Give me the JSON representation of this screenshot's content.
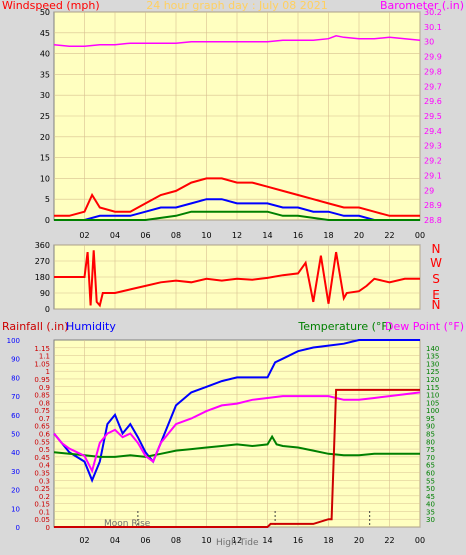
{
  "colors": {
    "bg": "#d9d9d9",
    "plot": "#ffffc0",
    "grid": "#d8c090",
    "red": "#ff0000",
    "magenta": "#ff00ff",
    "blue": "#0000ff",
    "green": "#008000",
    "darkred": "#cc0000",
    "title": "#ffd060",
    "tick": "#000000"
  },
  "chart_data": [
    {
      "type": "line",
      "id": "wind-baro",
      "title": "24 hour graph day : July 08 2021",
      "ylabel_left": "Windspeed (mph)",
      "ylabel_right": "Barometer (.in)",
      "ylim_left": [
        0,
        50
      ],
      "yticks_left": [
        "0",
        "5",
        "10",
        "15",
        "20",
        "25",
        "30",
        "35",
        "40",
        "45",
        "50"
      ],
      "ylim_right": [
        28.8,
        30.2
      ],
      "yticks_right": [
        "28.8",
        "28.9",
        "29",
        "29.1",
        "29.2",
        "29.3",
        "29.4",
        "29.5",
        "29.6",
        "29.7",
        "29.8",
        "29.9",
        "30",
        "30.1",
        "30.2"
      ],
      "xlim": [
        0,
        24
      ],
      "xticks": [
        "02",
        "04",
        "06",
        "08",
        "10",
        "12",
        "14",
        "16",
        "18",
        "20",
        "22",
        "00"
      ],
      "series": [
        {
          "role": "barometer",
          "color": "#ff00ff",
          "x": [
            0,
            1,
            2,
            3,
            4,
            5,
            6,
            7,
            8,
            9,
            10,
            11,
            12,
            13,
            14,
            15,
            16,
            17,
            18,
            18.5,
            19,
            20,
            21,
            22,
            23,
            24
          ],
          "y": [
            29.98,
            29.97,
            29.97,
            29.98,
            29.98,
            29.99,
            29.99,
            29.99,
            29.99,
            30.0,
            30.0,
            30.0,
            30.0,
            30.0,
            30.0,
            30.01,
            30.01,
            30.01,
            30.02,
            30.04,
            30.03,
            30.02,
            30.02,
            30.03,
            30.02,
            30.01
          ]
        },
        {
          "role": "wind-gust",
          "color": "#ff0000",
          "x": [
            0,
            1,
            2,
            2.5,
            3,
            4,
            5,
            6,
            7,
            8,
            9,
            10,
            11,
            12,
            13,
            14,
            15,
            16,
            17,
            18,
            19,
            20,
            21,
            22,
            23,
            24
          ],
          "y": [
            1,
            1,
            2,
            6,
            3,
            2,
            2,
            4,
            6,
            7,
            9,
            10,
            10,
            9,
            9,
            8,
            7,
            6,
            5,
            4,
            3,
            3,
            2,
            1,
            1,
            1
          ]
        },
        {
          "role": "wind-avg",
          "color": "#0000ff",
          "x": [
            0,
            2,
            3,
            4,
            5,
            6,
            7,
            8,
            9,
            10,
            11,
            12,
            13,
            14,
            15,
            16,
            17,
            18,
            19,
            20,
            21,
            22,
            24
          ],
          "y": [
            0,
            0,
            1,
            1,
            1,
            2,
            3,
            3,
            4,
            5,
            5,
            4,
            4,
            4,
            3,
            3,
            2,
            2,
            1,
            1,
            0,
            0,
            0
          ]
        },
        {
          "role": "wind-low",
          "color": "#008000",
          "x": [
            0,
            4,
            6,
            8,
            9,
            10,
            11,
            12,
            13,
            14,
            15,
            16,
            18,
            20,
            24
          ],
          "y": [
            0,
            0,
            0,
            1,
            2,
            2,
            2,
            2,
            2,
            2,
            1,
            1,
            0,
            0,
            0
          ]
        }
      ]
    },
    {
      "type": "line",
      "id": "wind-direction",
      "ylim": [
        0,
        360
      ],
      "yticks": [
        "0",
        "90",
        "180",
        "270",
        "360"
      ],
      "right_labels": [
        "N",
        "W",
        "S",
        "E",
        "N"
      ],
      "xlim": [
        0,
        24
      ],
      "series": [
        {
          "role": "direction",
          "color": "#ff0000",
          "x": [
            0,
            1,
            2,
            2.2,
            2.4,
            2.6,
            2.8,
            3,
            3.2,
            4,
            5,
            6,
            7,
            8,
            9,
            10,
            11,
            12,
            13,
            14,
            15,
            16,
            16.5,
            17,
            17.5,
            18,
            18.5,
            19,
            19.2,
            20,
            20.5,
            21,
            22,
            23,
            24
          ],
          "y": [
            180,
            180,
            180,
            320,
            20,
            330,
            40,
            20,
            90,
            90,
            110,
            130,
            150,
            160,
            150,
            170,
            160,
            170,
            165,
            175,
            190,
            200,
            260,
            40,
            300,
            30,
            320,
            60,
            90,
            100,
            130,
            170,
            150,
            170,
            170
          ]
        }
      ]
    },
    {
      "type": "line",
      "id": "temp-humidity",
      "ylabel_left_red": "Rainfall (.in)",
      "ylabel_left_blue": "Humidity",
      "ylabel_right_green": "Temperature (°F)",
      "ylabel_right_magenta": "Dew Point (°F)",
      "ylim_humidity": [
        0,
        100
      ],
      "yticks_humidity": [
        "0",
        "10",
        "20",
        "30",
        "40",
        "50",
        "60",
        "70",
        "80",
        "90",
        "100"
      ],
      "ylim_rain": [
        0,
        1.2
      ],
      "yticks_rain": [
        "0",
        "0.05",
        "0.1",
        "0.15",
        "0.2",
        "0.25",
        "0.3",
        "0.35",
        "0.4",
        "0.45",
        "0.5",
        "0.55",
        "0.6",
        "0.65",
        "0.7",
        "0.75",
        "0.8",
        "0.85",
        "0.9",
        "0.95",
        "1",
        "1.05",
        "1.1",
        "1.15"
      ],
      "ylim_temp": [
        25,
        145
      ],
      "yticks_temp": [
        "30",
        "35",
        "40",
        "45",
        "50",
        "55",
        "60",
        "65",
        "70",
        "75",
        "80",
        "85",
        "90",
        "95",
        "100",
        "105",
        "110",
        "115",
        "120",
        "125",
        "130",
        "135",
        "140"
      ],
      "xlim": [
        0,
        24
      ],
      "xticks": [
        "02",
        "04",
        "06",
        "08",
        "10",
        "12",
        "14",
        "16",
        "18",
        "20",
        "22",
        "00"
      ],
      "annotations": [
        "Moon Rise",
        "High Tide"
      ],
      "series": [
        {
          "role": "humidity",
          "color": "#0000ff",
          "x": [
            0,
            1,
            2,
            2.5,
            3,
            3.5,
            4,
            4.5,
            5,
            5.5,
            6,
            6.5,
            7,
            7.5,
            8,
            9,
            10,
            11,
            12,
            13,
            14,
            14.5,
            15,
            16,
            17,
            18,
            19,
            20,
            21,
            22,
            23,
            24
          ],
          "y": [
            50,
            40,
            35,
            25,
            35,
            55,
            60,
            50,
            55,
            48,
            40,
            35,
            45,
            55,
            65,
            72,
            75,
            78,
            80,
            80,
            80,
            88,
            90,
            94,
            96,
            97,
            98,
            100,
            100,
            100,
            100,
            100
          ]
        },
        {
          "role": "temperature",
          "color": "#008000",
          "x": [
            0,
            1,
            2,
            3,
            4,
            5,
            6,
            7,
            8,
            9,
            10,
            11,
            12,
            13,
            14,
            14.3,
            14.6,
            15,
            16,
            17,
            18,
            19,
            20,
            21,
            22,
            23,
            24
          ],
          "y": [
            73,
            72,
            71,
            70,
            70,
            71,
            70,
            72,
            74,
            75,
            76,
            77,
            78,
            77,
            78,
            83,
            78,
            77,
            76,
            74,
            72,
            71,
            71,
            72,
            72,
            72,
            72
          ]
        },
        {
          "role": "dew-point",
          "color": "#ff00ff",
          "x": [
            0,
            0.5,
            1,
            1.5,
            2,
            2.5,
            3,
            3.5,
            4,
            4.5,
            5,
            5.5,
            6,
            6.5,
            7,
            8,
            9,
            10,
            11,
            12,
            13,
            14,
            15,
            16,
            17,
            18,
            19,
            20,
            21,
            22,
            23,
            24
          ],
          "y": [
            50,
            45,
            42,
            40,
            38,
            30,
            45,
            50,
            52,
            48,
            50,
            45,
            38,
            35,
            45,
            55,
            58,
            62,
            65,
            66,
            68,
            69,
            70,
            70,
            70,
            70,
            68,
            68,
            69,
            70,
            71,
            72
          ]
        },
        {
          "role": "rainfall",
          "color": "#cc0000",
          "x": [
            0,
            14,
            14.2,
            17,
            18,
            18.2,
            18.5,
            22.5,
            23,
            24
          ],
          "y": [
            0,
            0,
            0.02,
            0.02,
            0.05,
            0.05,
            0.88,
            0.88,
            0.88,
            0.88
          ]
        }
      ]
    }
  ]
}
